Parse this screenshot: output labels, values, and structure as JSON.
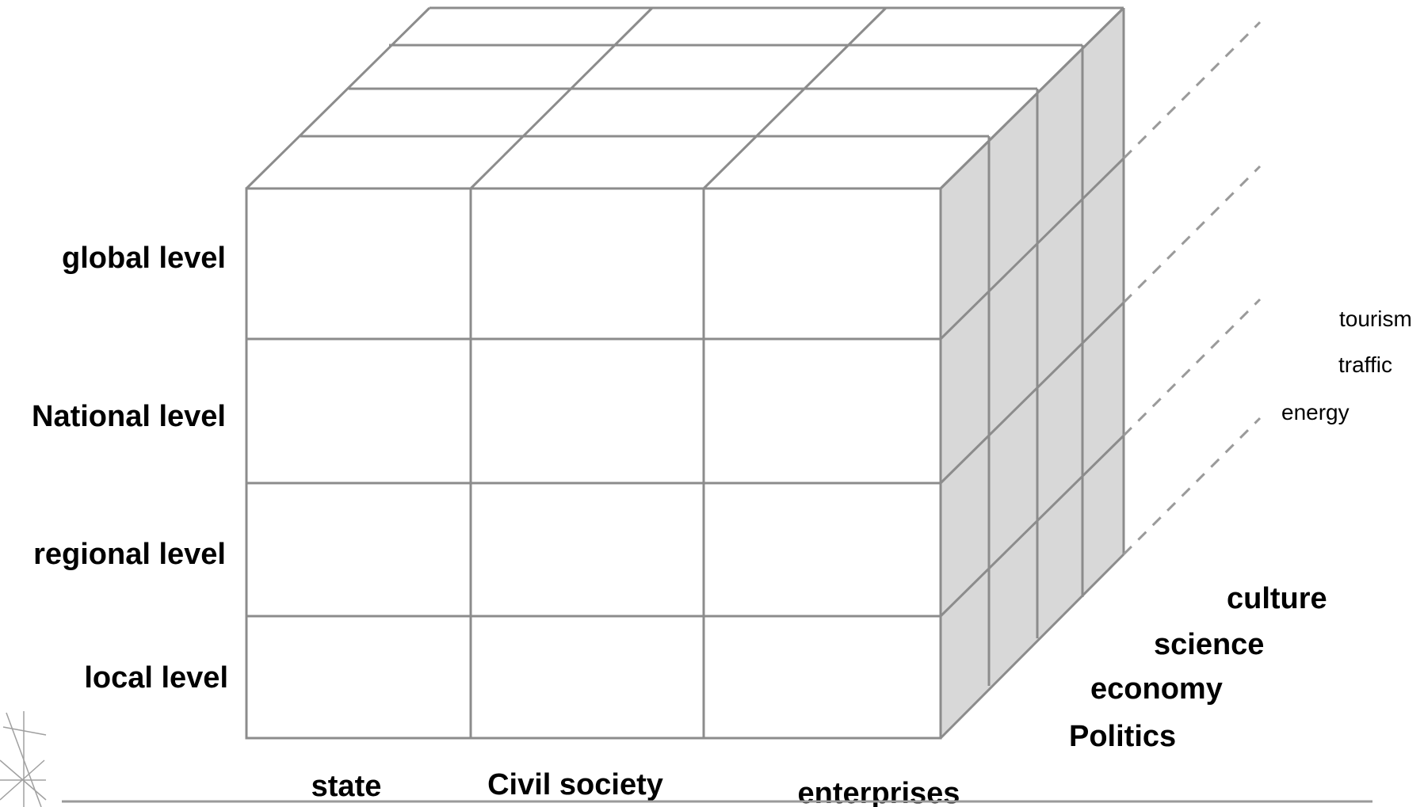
{
  "diagram": {
    "vertical_axis": [
      "global level",
      "National level",
      "regional level",
      "local level"
    ],
    "horizontal_axis": [
      "state",
      "Civil society",
      "enterprises"
    ],
    "depth_axis_main": [
      "culture",
      "science",
      "economy",
      "Politics"
    ],
    "depth_axis_extra": [
      "tourism",
      "traffic",
      "energy"
    ]
  },
  "colors": {
    "line": "#8c8c8c",
    "side_face": "#d8d8d8",
    "front_face": "#ffffff",
    "text": "#000000"
  }
}
